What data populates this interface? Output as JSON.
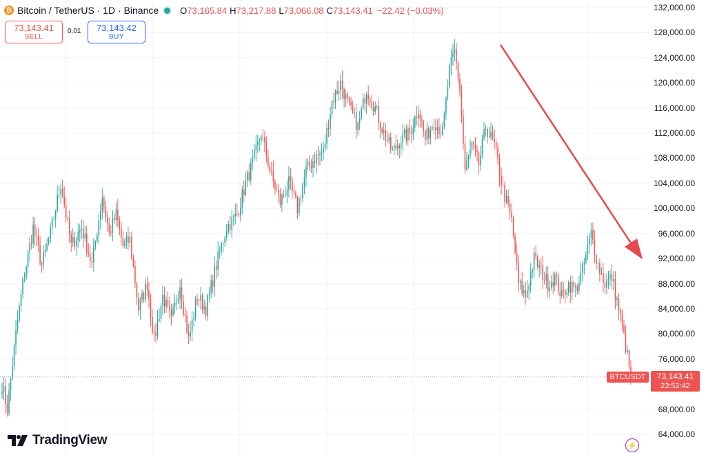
{
  "header": {
    "coin_icon": "bitcoin-icon",
    "coin_glyph": "₿",
    "symbol_title": "Bitcoin / TetherUS · 1D · Binance",
    "ohlc": {
      "o_key": "O",
      "o_val": "73,165.84",
      "h_key": "H",
      "h_val": "73,217.88",
      "l_key": "L",
      "l_val": "73,066.08",
      "c_key": "C",
      "c_val": "73,143.41"
    },
    "change": "−22.42 (−0.03%)"
  },
  "trade": {
    "sell_price": "73,143.41",
    "sell_label": "SELL",
    "spread": "0.01",
    "buy_price": "73,143.42",
    "buy_label": "BUY"
  },
  "logo": {
    "text": "TradingView"
  },
  "price_axis": {
    "ticks": [
      "132,000.00",
      "128,000.00",
      "124,000.00",
      "120,000.00",
      "116,000.00",
      "112,000.00",
      "108,000.00",
      "104,000.00",
      "100,000.00",
      "96,000.00",
      "92,000.00",
      "88,000.00",
      "84,000.00",
      "80,000.00",
      "76,000.00",
      "68,000.00",
      "64,000.00"
    ],
    "last_price": "73,143.41",
    "countdown": "23:52:42",
    "symbol_tag": "BTCUSDT"
  },
  "colors": {
    "up": "#26a69a",
    "down": "#ef5350",
    "arrow": "#e5484d",
    "grid": "#f0f3fa"
  },
  "chart_data": {
    "type": "candlestick",
    "interval": "1D",
    "y_range": [
      64000,
      132000
    ],
    "last_price": 73143.41,
    "close_path_knots": [
      [
        0,
        72000
      ],
      [
        3,
        68000
      ],
      [
        8,
        80000
      ],
      [
        12,
        88000
      ],
      [
        18,
        97000
      ],
      [
        23,
        91000
      ],
      [
        28,
        96000
      ],
      [
        34,
        104000
      ],
      [
        40,
        94000
      ],
      [
        46,
        97000
      ],
      [
        52,
        91000
      ],
      [
        58,
        102000
      ],
      [
        62,
        96000
      ],
      [
        66,
        99000
      ],
      [
        70,
        94000
      ],
      [
        74,
        95000
      ],
      [
        79,
        84000
      ],
      [
        84,
        88000
      ],
      [
        88,
        79000
      ],
      [
        93,
        86000
      ],
      [
        98,
        82000
      ],
      [
        103,
        88000
      ],
      [
        108,
        79000
      ],
      [
        113,
        86000
      ],
      [
        118,
        84000
      ],
      [
        124,
        91000
      ],
      [
        130,
        97000
      ],
      [
        136,
        99000
      ],
      [
        141,
        104000
      ],
      [
        146,
        108000
      ],
      [
        150,
        112000
      ],
      [
        156,
        105000
      ],
      [
        161,
        101000
      ],
      [
        166,
        104000
      ],
      [
        171,
        100000
      ],
      [
        176,
        106000
      ],
      [
        181,
        108000
      ],
      [
        186,
        109000
      ],
      [
        191,
        117000
      ],
      [
        196,
        120000
      ],
      [
        201,
        116000
      ],
      [
        206,
        113000
      ],
      [
        211,
        119000
      ],
      [
        216,
        116000
      ],
      [
        221,
        112000
      ],
      [
        226,
        109000
      ],
      [
        231,
        111000
      ],
      [
        236,
        112000
      ],
      [
        241,
        116000
      ],
      [
        245,
        111000
      ],
      [
        250,
        114000
      ],
      [
        255,
        112000
      ],
      [
        259,
        122000
      ],
      [
        262,
        125000
      ],
      [
        265,
        119000
      ],
      [
        268,
        106000
      ],
      [
        272,
        110000
      ],
      [
        276,
        107000
      ],
      [
        280,
        113000
      ],
      [
        285,
        110000
      ],
      [
        290,
        103000
      ],
      [
        295,
        98000
      ],
      [
        299,
        88000
      ],
      [
        303,
        86000
      ],
      [
        308,
        92000
      ],
      [
        312,
        90000
      ],
      [
        316,
        88000
      ],
      [
        320,
        89000
      ],
      [
        324,
        86000
      ],
      [
        328,
        88000
      ],
      [
        332,
        87000
      ],
      [
        336,
        90000
      ],
      [
        341,
        96000
      ],
      [
        345,
        91000
      ],
      [
        349,
        88000
      ],
      [
        353,
        89000
      ],
      [
        357,
        84000
      ],
      [
        361,
        78000
      ],
      [
        364,
        73143
      ]
    ]
  }
}
